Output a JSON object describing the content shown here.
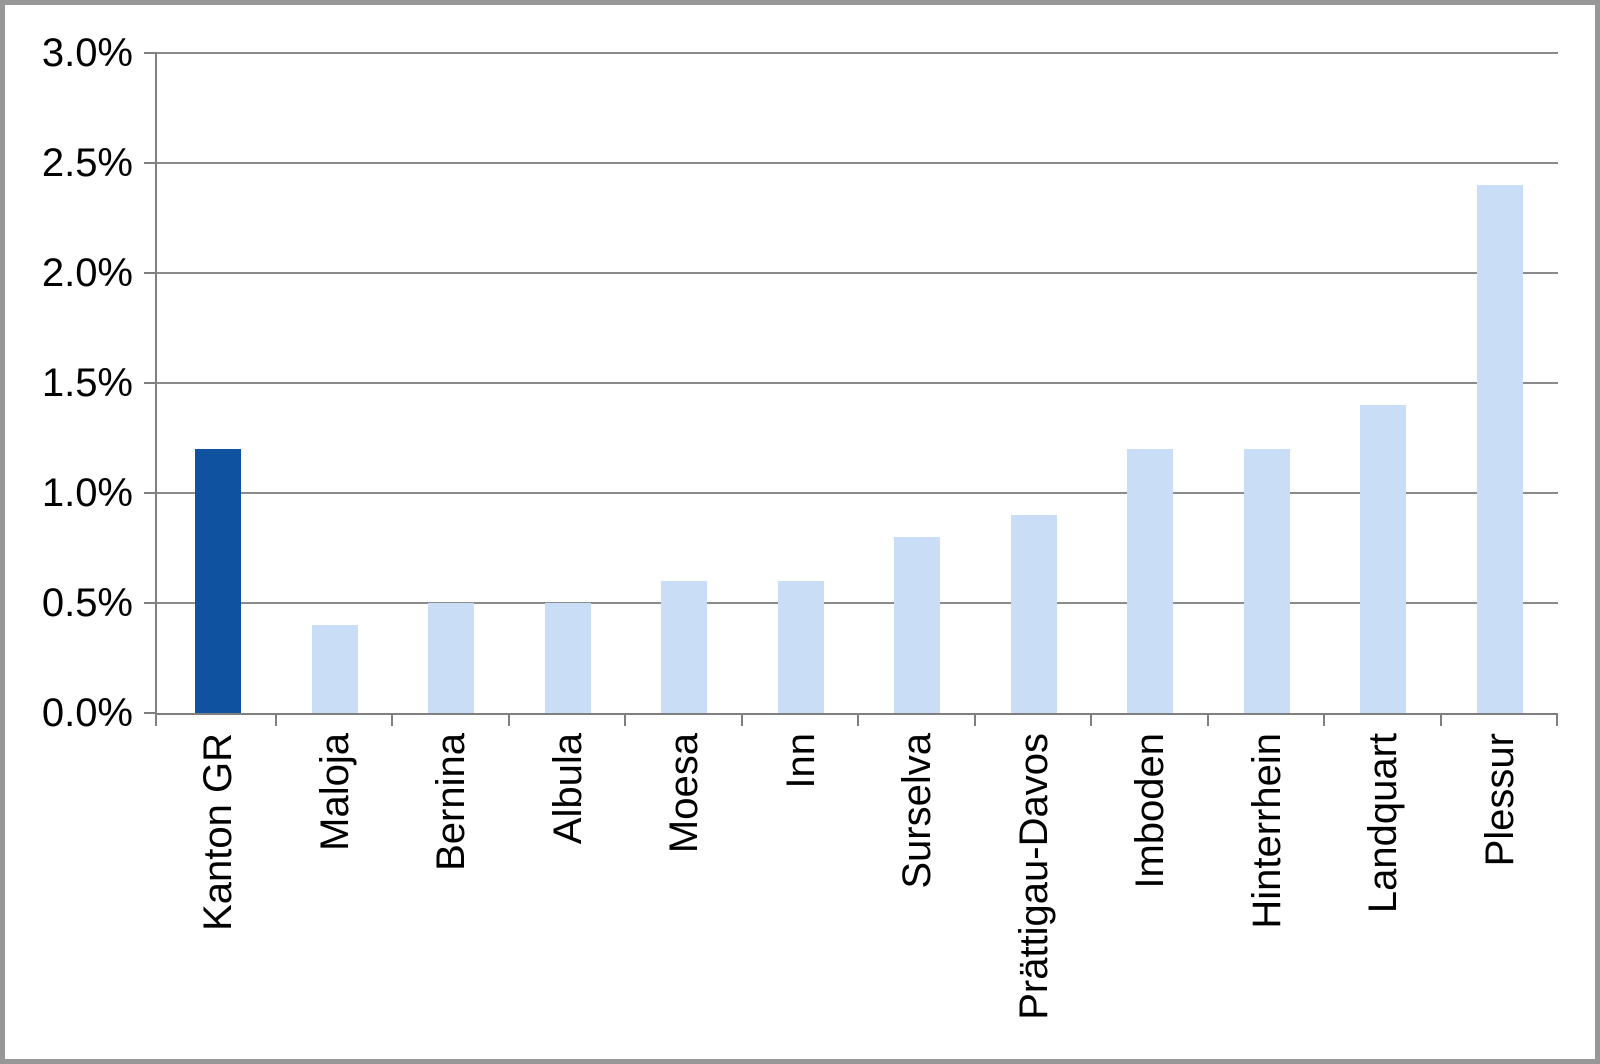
{
  "chart_data": {
    "type": "bar",
    "categories": [
      "Kanton GR",
      "Maloja",
      "Bernina",
      "Albula",
      "Moesa",
      "Inn",
      "Surselva",
      "Prättigau-Davos",
      "Imboden",
      "Hinterrhein",
      "Landquart",
      "Plessur"
    ],
    "values": [
      1.2,
      0.4,
      0.5,
      0.5,
      0.6,
      0.6,
      0.8,
      0.9,
      1.2,
      1.2,
      1.4,
      2.4
    ],
    "value_unit": "percent",
    "title": "",
    "xlabel": "",
    "ylabel": "",
    "ylim": [
      0.0,
      3.0
    ],
    "ytick_step": 0.5,
    "yticks": [
      "0.0%",
      "0.5%",
      "1.0%",
      "1.5%",
      "2.0%",
      "2.5%",
      "3.0%"
    ],
    "grid": true,
    "legend": false,
    "highlight_index": 0,
    "colors": {
      "highlight_bar": "#0E52A0",
      "default_bar": "#C9DEF6",
      "gridline": "#8B8B8B",
      "axis": "#7F7F7F",
      "text": "#000000",
      "frame_border": "#979797",
      "background": "#FFFFFF"
    }
  }
}
